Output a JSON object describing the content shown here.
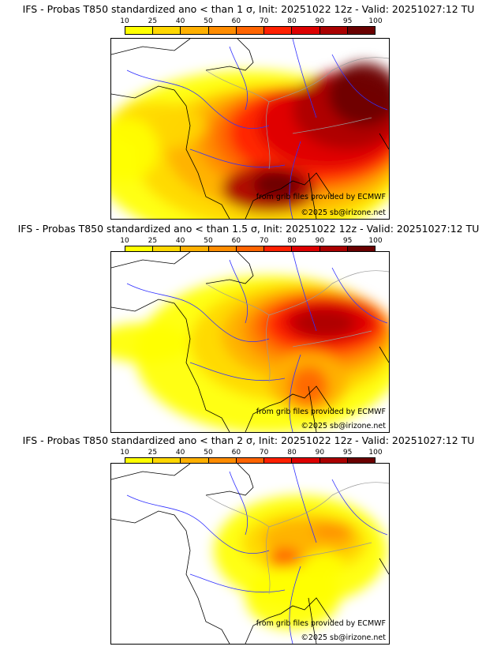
{
  "colorbar": {
    "ticks": [
      "10",
      "25",
      "40",
      "50",
      "60",
      "70",
      "80",
      "90",
      "95",
      "100"
    ],
    "colors": [
      "#ffff00",
      "#ffd700",
      "#ffb000",
      "#ff8c00",
      "#ff6400",
      "#ff2000",
      "#dd0000",
      "#aa0000",
      "#6a0000"
    ]
  },
  "panels": [
    {
      "title": "IFS - Probas T850  standardized ano < than 1 σ, Init: 20251022 12z - Valid: 20251027:12 TU"
    },
    {
      "title": "IFS - Probas T850  standardized ano < than 1.5 σ, Init: 20251022 12z - Valid: 20251027:12 TU"
    },
    {
      "title": "IFS - Probas T850  standardized ano < than 2 σ, Init: 20251022 12z - Valid: 20251027:12 TU"
    }
  ],
  "credits": {
    "source": "from grib files provided by ECMWF",
    "copyright": "©2025 sb@irizone.net"
  }
}
